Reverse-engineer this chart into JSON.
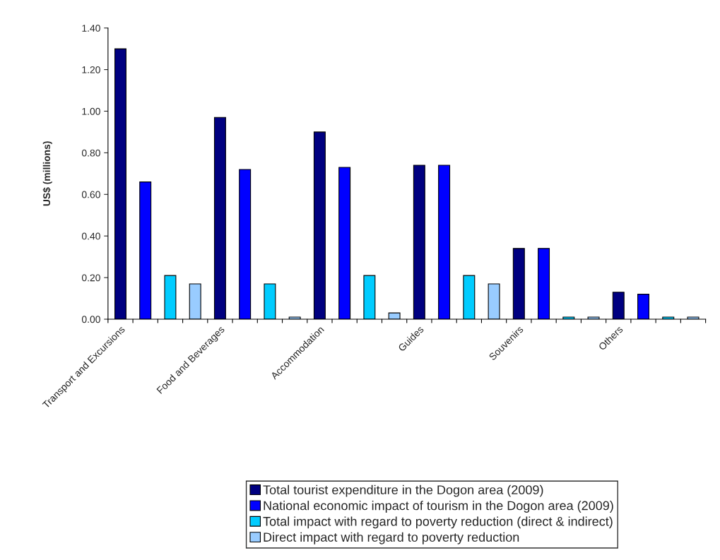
{
  "chart_data": {
    "type": "bar",
    "ylabel": "US$ (millions)",
    "categories": [
      "Transport and Excursions",
      null,
      null,
      null,
      "Food and Beverages",
      null,
      null,
      null,
      "Accommodation",
      null,
      null,
      null,
      "Guides",
      null,
      null,
      null,
      "Souvenirs",
      null,
      null,
      null,
      "Others",
      null,
      null,
      null
    ],
    "series": [
      {
        "name": "Total tourist expenditure in the Dogon area (2009)",
        "color": "#000080",
        "values": [
          1.3,
          null,
          null,
          null,
          0.97,
          null,
          null,
          null,
          0.9,
          null,
          null,
          null,
          0.74,
          null,
          null,
          null,
          0.34,
          null,
          null,
          null,
          0.13,
          null,
          null,
          null
        ]
      },
      {
        "name": "National economic impact of tourism in the Dogon area (2009)",
        "color": "#0000ff",
        "values": [
          null,
          0.66,
          null,
          null,
          null,
          0.72,
          null,
          null,
          null,
          0.73,
          null,
          null,
          null,
          0.74,
          null,
          null,
          null,
          0.34,
          null,
          null,
          null,
          0.12,
          null,
          null
        ]
      },
      {
        "name": "Total impact with regard to poverty reduction (direct & indirect)",
        "color": "#00ccff",
        "values": [
          null,
          null,
          0.21,
          null,
          null,
          null,
          0.17,
          null,
          null,
          null,
          0.21,
          null,
          null,
          null,
          0.21,
          null,
          null,
          null,
          0.01,
          null,
          null,
          null,
          0.01,
          null
        ]
      },
      {
        "name": "Direct impact with regard to poverty reduction",
        "color": "#99ccff",
        "values": [
          null,
          null,
          null,
          0.17,
          null,
          null,
          null,
          0.01,
          null,
          null,
          null,
          0.03,
          null,
          null,
          null,
          0.17,
          null,
          null,
          null,
          0.01,
          null,
          null,
          null,
          0.01
        ]
      }
    ],
    "ylim": [
      0,
      1.4
    ],
    "yticks": [
      {
        "value": 0,
        "label": "0.00"
      },
      {
        "value": 0.2,
        "label": "0.20"
      },
      {
        "value": 0.4,
        "label": "0.40"
      },
      {
        "value": 0.6,
        "label": "0.60"
      },
      {
        "value": 0.8,
        "label": "0.80"
      },
      {
        "value": 1.0,
        "label": "1.00"
      },
      {
        "value": 1.2,
        "label": "1.20"
      },
      {
        "value": 1.4,
        "label": "1.40"
      }
    ],
    "grid": false,
    "legend": "bottom"
  }
}
